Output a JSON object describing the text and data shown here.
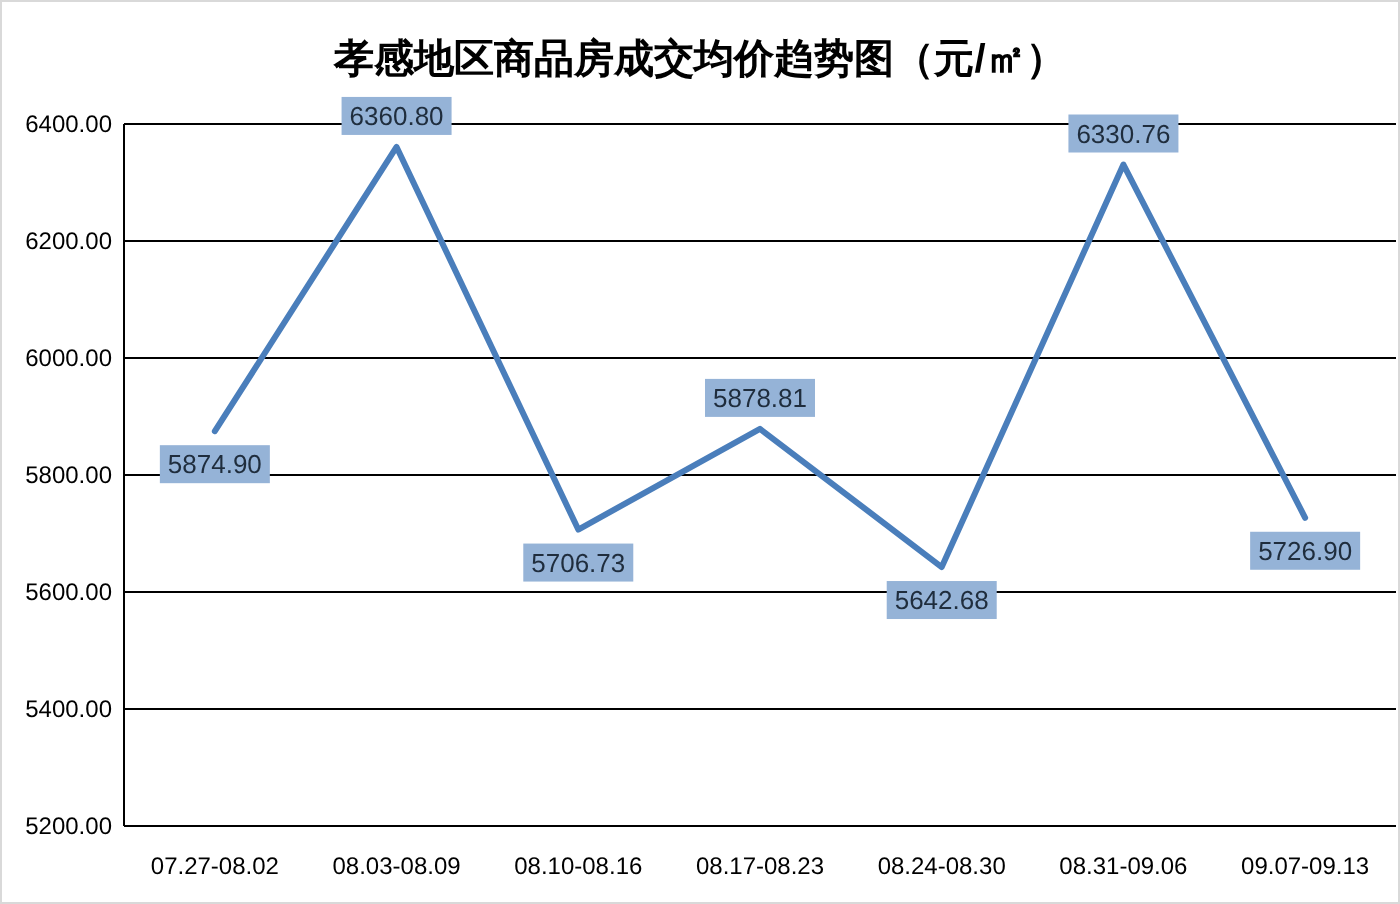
{
  "chart_data": {
    "type": "line",
    "title": "孝感地区商品房成交均价趋势图（元/㎡）",
    "categories": [
      "07.27-08.02",
      "08.03-08.09",
      "08.10-08.16",
      "08.17-08.23",
      "08.24-08.30",
      "08.31-09.06",
      "09.07-09.13"
    ],
    "series": [
      {
        "color": "#4a7ebb",
        "values": [
          5874.9,
          6360.8,
          5706.73,
          5878.81,
          5642.68,
          6330.76,
          5726.9
        ],
        "value_labels": [
          "5874.90",
          "6360.80",
          "5706.73",
          "5878.81",
          "5642.68",
          "6330.76",
          "5726.90"
        ]
      }
    ],
    "ylim": [
      5200,
      6400
    ],
    "yticks": [
      {
        "value": 5200,
        "label": "5200.00"
      },
      {
        "value": 5400,
        "label": "5400.00"
      },
      {
        "value": 5600,
        "label": "5600.00"
      },
      {
        "value": 5800,
        "label": "5800.00"
      },
      {
        "value": 6000,
        "label": "6000.00"
      },
      {
        "value": 6200,
        "label": "6200.00"
      },
      {
        "value": 6400,
        "label": "6400.00"
      }
    ],
    "grid": "y",
    "marker": "none",
    "line_style": "solid"
  }
}
